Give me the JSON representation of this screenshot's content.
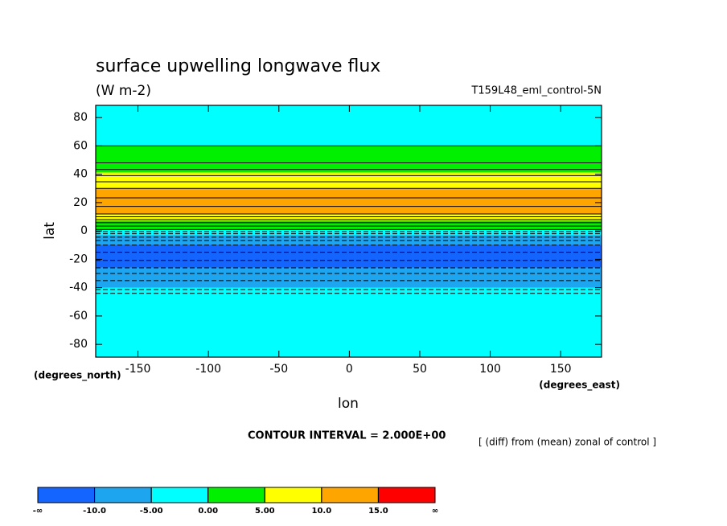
{
  "chart_data": {
    "type": "zonal-contour",
    "title": "surface upwelling longwave flux",
    "units": "(W m-2)",
    "dataset": "T159L48_eml_control-5N",
    "x_label": "lon",
    "y_label": "lat",
    "x_units": "(degrees_east)",
    "y_units": "(degrees_north)",
    "contour_interval": 2,
    "contour_interval_text": "CONTOUR INTERVAL = 2.000E+00",
    "note": "[ (diff) from (mean) zonal of control ]",
    "xlim": [
      -180,
      179
    ],
    "ylim": [
      -89,
      88.6
    ],
    "xticks": [
      -150,
      -100,
      -50,
      0,
      50,
      100,
      150
    ],
    "yticks": [
      -80,
      -60,
      -40,
      -20,
      0,
      20,
      40,
      60,
      80
    ],
    "lat": [
      88.6,
      62,
      60,
      48,
      41,
      37,
      30,
      20,
      12,
      7,
      1,
      -2,
      -8,
      -12,
      -18,
      -25,
      -30,
      -35,
      -40,
      -44,
      -50,
      -89
    ],
    "values": [
      -1,
      -1,
      0,
      2,
      5,
      7,
      10,
      13,
      10,
      5,
      0,
      -4,
      -9,
      -11,
      -13,
      -10.5,
      -8,
      -6,
      -5,
      -2,
      -1,
      -1
    ],
    "levels": [
      -10,
      -5,
      0,
      5,
      10,
      15
    ],
    "colors": [
      "#1464ff",
      "#1ea5f0",
      "#00ffff",
      "#00f000",
      "#ffff00",
      "#ffa500",
      "#ff0000"
    ],
    "colorbar_ticks": [
      {
        "value": -10,
        "label": "-10.0"
      },
      {
        "value": -5,
        "label": "-5.00"
      },
      {
        "value": 0,
        "label": "0.00"
      },
      {
        "value": 5,
        "label": "5.00"
      },
      {
        "value": 10,
        "label": "10.0"
      },
      {
        "value": 15,
        "label": "15.0"
      }
    ],
    "colorbar_ends": [
      "-∞",
      "∞"
    ]
  }
}
